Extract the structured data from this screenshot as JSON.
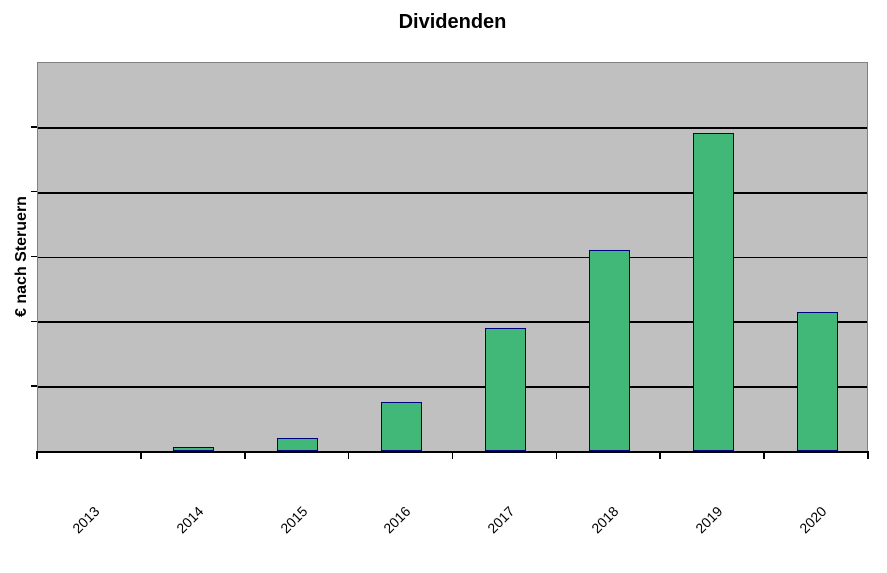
{
  "title": "Dividenden",
  "chart_data": {
    "type": "bar",
    "title": "Dividenden",
    "categories": [
      "2013",
      "2014",
      "2015",
      "2016",
      "2017",
      "2018",
      "2019",
      "2020"
    ],
    "values": [
      0,
      0.06,
      0.2,
      0.75,
      1.9,
      3.1,
      4.9,
      2.15
    ],
    "xlabel": "",
    "ylabel": "€ nach Steruern",
    "ylim": [
      0,
      6
    ],
    "y_gridline_interval": 1,
    "y_tick_labels": [],
    "value_note": "y-axis has no numeric tick labels; values are estimated in gridline units (1 unit = 1 horizontal gridline interval)",
    "grid": "horizontal-only",
    "legend": "none",
    "x_tick_label_rotation_deg": 45,
    "colors": {
      "bar_fill": "#41b877",
      "bar_border": "#000080",
      "plot_background": "#c0c0c0",
      "plot_border": "#808080",
      "gridline": "#000000",
      "axis_line": "#000000",
      "page_background": "#ffffff",
      "text": "#000000"
    }
  }
}
